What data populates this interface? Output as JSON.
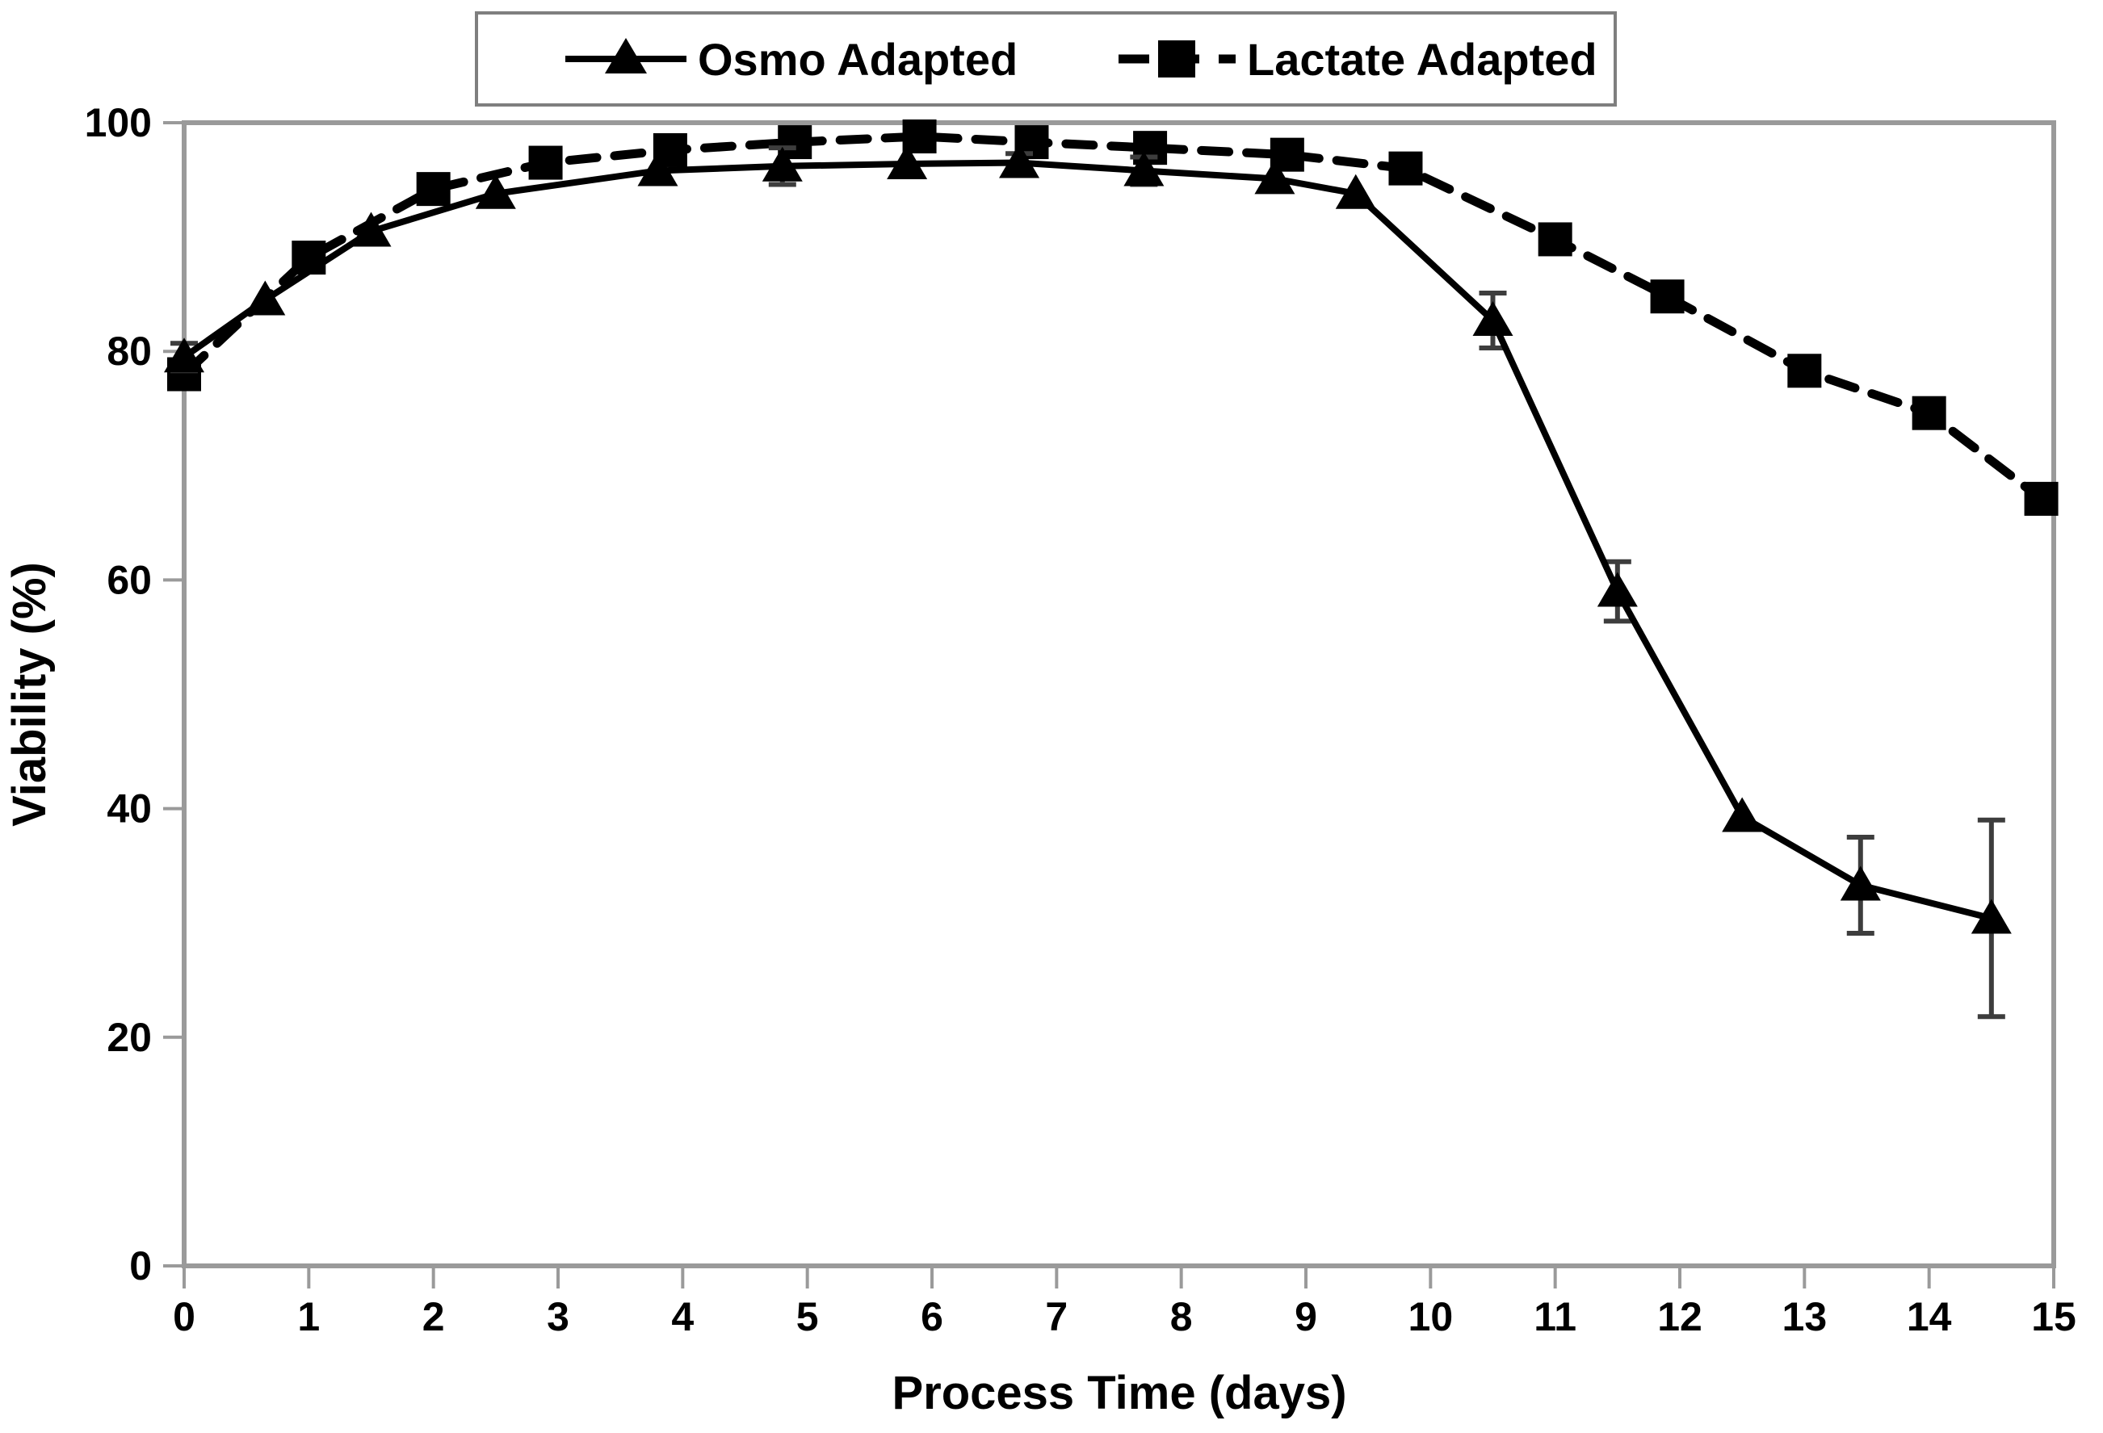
{
  "chart_data": {
    "type": "line",
    "title": "",
    "xlabel": "Process Time (days)",
    "ylabel": "Viability (%)",
    "xlim": [
      0,
      15
    ],
    "ylim": [
      0,
      100
    ],
    "x_ticks": [
      0,
      1,
      2,
      3,
      4,
      5,
      6,
      7,
      8,
      9,
      10,
      11,
      12,
      13,
      14,
      15
    ],
    "y_ticks": [
      0,
      20,
      40,
      60,
      80,
      100
    ],
    "grid": false,
    "legend_position": "top-center",
    "frame_color": "#9a9a9a",
    "error_bar_color": "#3d3d3d",
    "series": [
      {
        "name": "Lactate Adapted",
        "marker": "square",
        "line_style": "dashed",
        "color": "#000000",
        "x": [
          0,
          1.0,
          2.0,
          2.9,
          3.9,
          4.9,
          5.9,
          6.8,
          7.75,
          8.85,
          9.8,
          11.0,
          11.9,
          13.0,
          14.0,
          14.9
        ],
        "y": [
          78.0,
          88.2,
          94.2,
          96.5,
          97.6,
          98.3,
          98.8,
          98.3,
          97.8,
          97.2,
          96.0,
          89.8,
          84.8,
          78.3,
          74.6,
          67.1
        ],
        "yerr": [
          0,
          0,
          0,
          0,
          0,
          0,
          0,
          0,
          0,
          0,
          0,
          0,
          0,
          0,
          0,
          0
        ]
      },
      {
        "name": "Osmo Adapted",
        "marker": "triangle",
        "line_style": "solid",
        "color": "#000000",
        "x": [
          0,
          0.65,
          1.5,
          2.5,
          3.8,
          4.8,
          5.8,
          6.7,
          7.7,
          8.75,
          9.4,
          10.5,
          11.5,
          12.5,
          13.45,
          14.5
        ],
        "y": [
          79.5,
          84.5,
          90.5,
          93.8,
          95.8,
          96.2,
          96.4,
          96.5,
          95.8,
          95.1,
          93.8,
          82.7,
          59.0,
          39.3,
          33.3,
          30.4
        ],
        "yerr": [
          1.2,
          0,
          0,
          0,
          0,
          1.6,
          0,
          0.8,
          1.2,
          0,
          0,
          2.4,
          2.6,
          0,
          4.2,
          8.6
        ]
      }
    ],
    "legend": {
      "entries": [
        {
          "label": "Osmo Adapted",
          "marker": "triangle",
          "line_style": "solid"
        },
        {
          "label": "Lactate Adapted",
          "marker": "square",
          "line_style": "dashed"
        }
      ]
    }
  }
}
